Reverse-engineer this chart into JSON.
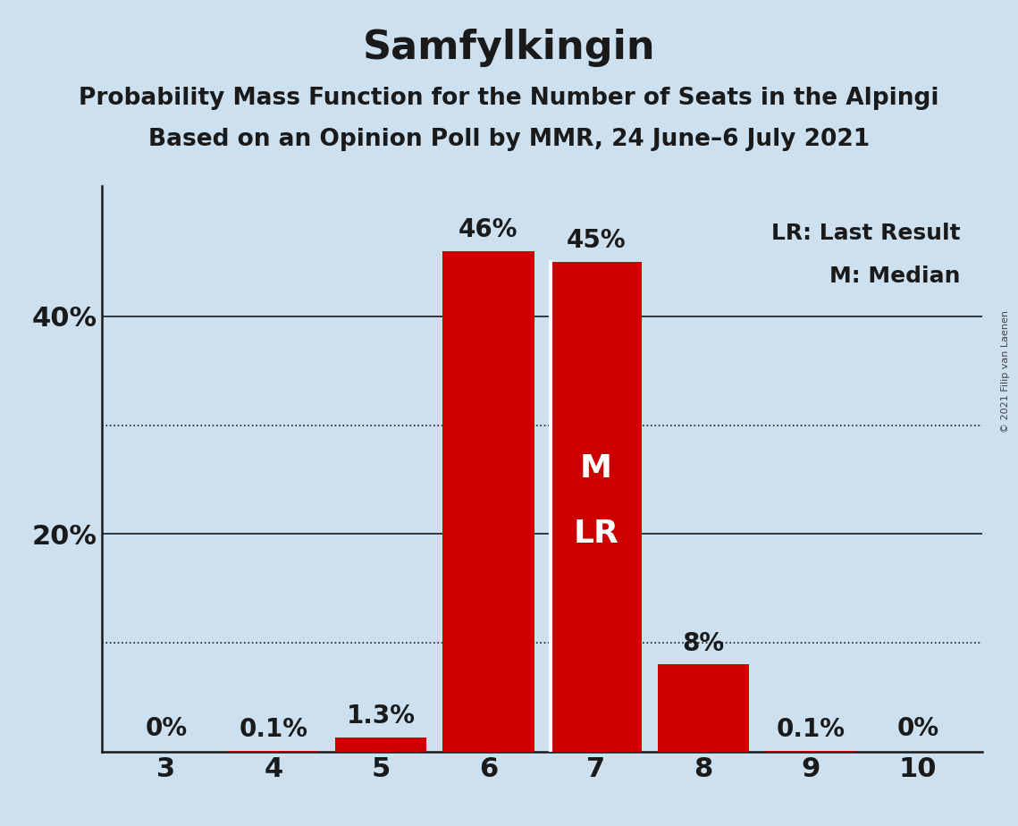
{
  "title": "Samfylkingin",
  "subtitle1": "Probability Mass Function for the Number of Seats in the Alpingi",
  "subtitle2": "Based on an Opinion Poll by MMR, 24 June–6 July 2021",
  "copyright": "© 2021 Filip van Laenen",
  "categories": [
    3,
    4,
    5,
    6,
    7,
    8,
    9,
    10
  ],
  "values": [
    0.0,
    0.1,
    1.3,
    46.0,
    45.0,
    8.0,
    0.1,
    0.0
  ],
  "bar_labels": [
    "0%",
    "0.1%",
    "1.3%",
    "46%",
    "45%",
    "8%",
    "0.1%",
    "0%"
  ],
  "bar_label_show_zero": true,
  "bar_color": "#cc0000",
  "background_color": "#cce0f0",
  "legend_text1": "LR: Last Result",
  "legend_text2": "M: Median",
  "yticks": [
    20,
    40
  ],
  "ytick_labels": [
    "20%",
    "40%"
  ],
  "dotted_lines": [
    10,
    30
  ],
  "ylim": [
    0,
    52
  ],
  "title_fontsize": 32,
  "subtitle_fontsize": 19,
  "bar_label_fontsize": 20,
  "axis_label_fontsize": 22,
  "inner_label_fontsize": 26,
  "legend_fontsize": 18
}
